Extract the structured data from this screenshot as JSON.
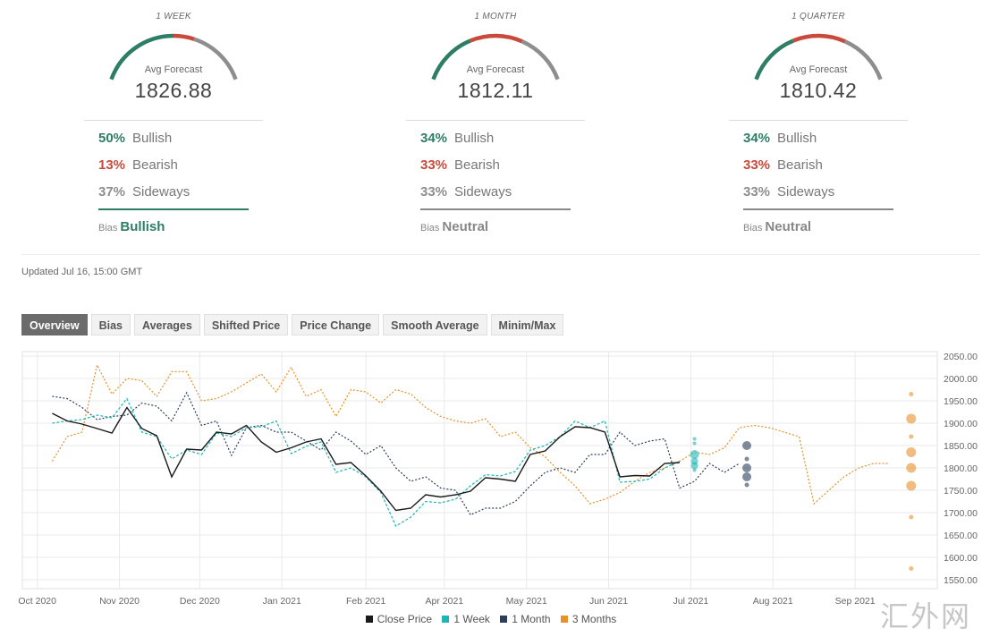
{
  "gauges": [
    {
      "period": "1 WEEK",
      "avg_label": "Avg Forecast",
      "avg_value": "1826.88",
      "bullish_pct": "50%",
      "bullish_label": "Bullish",
      "bearish_pct": "13%",
      "bearish_label": "Bearish",
      "sideways_pct": "37%",
      "sideways_label": "Sideways",
      "bias_label": "Bias",
      "bias_value": "Bullish",
      "bias_color": "#2e7d65",
      "arc": {
        "bullish": 0.5,
        "bearish": 0.13,
        "sideways": 0.37
      }
    },
    {
      "period": "1 MONTH",
      "avg_label": "Avg Forecast",
      "avg_value": "1812.11",
      "bullish_pct": "34%",
      "bullish_label": "Bullish",
      "bearish_pct": "33%",
      "bearish_label": "Bearish",
      "sideways_pct": "33%",
      "sideways_label": "Sideways",
      "bias_label": "Bias",
      "bias_value": "Neutral",
      "bias_color": "#888888",
      "arc": {
        "bullish": 0.34,
        "bearish": 0.33,
        "sideways": 0.33
      }
    },
    {
      "period": "1 QUARTER",
      "avg_label": "Avg Forecast",
      "avg_value": "1810.42",
      "bullish_pct": "34%",
      "bullish_label": "Bullish",
      "bearish_pct": "33%",
      "bearish_label": "Bearish",
      "sideways_pct": "33%",
      "sideways_label": "Sideways",
      "bias_label": "Bias",
      "bias_value": "Neutral",
      "bias_color": "#888888",
      "arc": {
        "bullish": 0.34,
        "bearish": 0.33,
        "sideways": 0.33
      }
    }
  ],
  "colors": {
    "bullish": "#2e7d65",
    "bearish": "#c9493b",
    "sideways": "#8e8e8e"
  },
  "updated": "Updated Jul 16, 15:00 GMT",
  "tabs": [
    "Overview",
    "Bias",
    "Averages",
    "Shifted Price",
    "Price Change",
    "Smooth Average",
    "Minim/Max"
  ],
  "legend": [
    {
      "label": "Close Price",
      "color": "#1a1a1a"
    },
    {
      "label": "1 Week",
      "color": "#1fb5b5"
    },
    {
      "label": "1 Month",
      "color": "#2c3e5c"
    },
    {
      "label": "3 Months",
      "color": "#e8902a"
    }
  ],
  "watermark": "汇外网",
  "chart_data": {
    "type": "line",
    "y_ticks": [
      1550,
      1600,
      1650,
      1700,
      1750,
      1800,
      1850,
      1900,
      1950,
      2000,
      2050
    ],
    "y_tick_labels": [
      "1550.00",
      "1600.00",
      "1650.00",
      "1700.00",
      "1750.00",
      "1800.00",
      "1850.00",
      "1900.00",
      "1950.00",
      "2000.00",
      "2050.00"
    ],
    "ylim": [
      1530,
      2060
    ],
    "x_ticks": [
      {
        "label": "Oct 2020",
        "week": 0
      },
      {
        "label": "Nov 2020",
        "week": 4.4
      },
      {
        "label": "Dec 2020",
        "week": 8.7
      },
      {
        "label": "Jan 2021",
        "week": 13.1
      },
      {
        "label": "Feb 2021",
        "week": 17.6
      },
      {
        "label": "Apr 2021",
        "week": 21.8
      },
      {
        "label": "May 2021",
        "week": 26.2
      },
      {
        "label": "Jun 2021",
        "week": 30.6
      },
      {
        "label": "Jul 2021",
        "week": 35.0
      },
      {
        "label": "Aug 2021",
        "week": 39.4
      },
      {
        "label": "Sep 2021",
        "week": 43.8
      }
    ],
    "xlim": [
      -0.8,
      48.2
    ],
    "series": [
      {
        "name": "Close Price",
        "color": "#1a1a1a",
        "style": "solid",
        "x": [
          0.8,
          1.6,
          2.4,
          3.2,
          4.0,
          4.8,
          5.6,
          6.4,
          7.2,
          8.0,
          8.8,
          9.6,
          10.4,
          11.2,
          12.0,
          12.8,
          13.6,
          14.4,
          15.2,
          16.0,
          16.8,
          17.6,
          18.4,
          19.2,
          20.0,
          20.8,
          21.6,
          22.4,
          23.2,
          24.0,
          24.8,
          25.6,
          26.4,
          27.2,
          28.0,
          28.8,
          29.6,
          30.4,
          31.2,
          32.0,
          32.8,
          33.6,
          34.4
        ],
        "y": [
          1922,
          1905,
          1898,
          1888,
          1878,
          1935,
          1888,
          1872,
          1780,
          1842,
          1840,
          1880,
          1876,
          1895,
          1858,
          1835,
          1845,
          1858,
          1865,
          1808,
          1812,
          1782,
          1748,
          1705,
          1710,
          1740,
          1735,
          1740,
          1748,
          1778,
          1775,
          1770,
          1830,
          1838,
          1870,
          1892,
          1890,
          1880,
          1780,
          1783,
          1782,
          1810,
          1812
        ]
      },
      {
        "name": "1 Week",
        "color": "#1fb5b5",
        "style": "dashed",
        "x": [
          0.8,
          1.6,
          2.4,
          3.2,
          4.0,
          4.8,
          5.6,
          6.4,
          7.2,
          8.0,
          8.8,
          9.6,
          10.4,
          11.2,
          12.0,
          12.8,
          13.6,
          14.4,
          15.2,
          16.0,
          16.8,
          17.6,
          18.4,
          19.2,
          20.0,
          20.8,
          21.6,
          22.4,
          23.2,
          24.0,
          24.8,
          25.6,
          26.4,
          27.2,
          28.0,
          28.8,
          29.6,
          30.4,
          31.2,
          32.0,
          32.8,
          33.6,
          34.4
        ],
        "y": [
          1900,
          1905,
          1908,
          1918,
          1912,
          1955,
          1880,
          1870,
          1820,
          1840,
          1830,
          1878,
          1870,
          1890,
          1892,
          1905,
          1832,
          1848,
          1858,
          1790,
          1800,
          1780,
          1745,
          1670,
          1690,
          1725,
          1722,
          1730,
          1760,
          1785,
          1782,
          1792,
          1840,
          1850,
          1870,
          1905,
          1890,
          1905,
          1768,
          1770,
          1775,
          1800,
          1815
        ]
      },
      {
        "name": "1 Month",
        "color": "#2c3e5c",
        "style": "dotted",
        "x": [
          0.8,
          1.6,
          2.4,
          3.2,
          4.0,
          4.8,
          5.6,
          6.4,
          7.2,
          8.0,
          8.8,
          9.6,
          10.4,
          11.2,
          12.0,
          12.8,
          13.6,
          14.4,
          15.2,
          16.0,
          16.8,
          17.6,
          18.4,
          19.2,
          20.0,
          20.8,
          21.6,
          22.4,
          23.2,
          24.0,
          24.8,
          25.6,
          26.4,
          27.2,
          28.0,
          28.8,
          29.6,
          30.4,
          31.2,
          32.0,
          32.8,
          33.6,
          34.4,
          35.2,
          36.0,
          36.8,
          37.6
        ],
        "y": [
          1960,
          1955,
          1935,
          1908,
          1915,
          1918,
          1945,
          1938,
          1905,
          1968,
          1895,
          1905,
          1828,
          1890,
          1895,
          1880,
          1880,
          1860,
          1840,
          1880,
          1860,
          1830,
          1850,
          1800,
          1770,
          1780,
          1755,
          1750,
          1695,
          1710,
          1710,
          1725,
          1760,
          1790,
          1800,
          1790,
          1830,
          1830,
          1880,
          1850,
          1860,
          1865,
          1755,
          1770,
          1810,
          1790,
          1810
        ]
      },
      {
        "name": "3 Months",
        "color": "#e8902a",
        "style": "dotted",
        "x": [
          0.8,
          1.6,
          2.4,
          3.2,
          4.0,
          4.8,
          5.6,
          6.4,
          7.2,
          8.0,
          8.8,
          9.6,
          10.4,
          11.2,
          12.0,
          12.8,
          13.6,
          14.4,
          15.2,
          16.0,
          16.8,
          17.6,
          18.4,
          19.2,
          20.0,
          20.8,
          21.6,
          22.4,
          23.2,
          24.0,
          24.8,
          25.6,
          26.4,
          27.2,
          28.0,
          28.8,
          29.6,
          30.4,
          31.2,
          32.0,
          32.8,
          33.6,
          34.4,
          35.2,
          36.0,
          36.8,
          37.6,
          38.4,
          39.2,
          40.0,
          40.8,
          41.6,
          42.4,
          43.2,
          44.0,
          44.8,
          45.6
        ],
        "y": [
          1815,
          1870,
          1880,
          2030,
          1965,
          2000,
          1995,
          1960,
          2015,
          2015,
          1950,
          1955,
          1970,
          1990,
          2010,
          1970,
          2025,
          1960,
          1975,
          1915,
          1975,
          1970,
          1945,
          1975,
          1965,
          1935,
          1915,
          1905,
          1900,
          1910,
          1870,
          1880,
          1845,
          1825,
          1790,
          1760,
          1720,
          1730,
          1745,
          1770,
          1790,
          1800,
          1815,
          1835,
          1830,
          1845,
          1890,
          1895,
          1890,
          1880,
          1870,
          1720,
          1750,
          1780,
          1800,
          1810,
          1810
        ]
      }
    ],
    "forecast_dots": [
      {
        "series": "1 Week",
        "color": "#1fb5b5",
        "x": 35.2,
        "points": [
          {
            "y": 1865,
            "r": 2
          },
          {
            "y": 1855,
            "r": 2
          },
          {
            "y": 1830,
            "r": 5
          },
          {
            "y": 1815,
            "r": 4
          },
          {
            "y": 1805,
            "r": 4
          },
          {
            "y": 1795,
            "r": 2
          }
        ]
      },
      {
        "series": "1 Month",
        "color": "#2c3e5c",
        "x": 38.0,
        "points": [
          {
            "y": 1850,
            "r": 5
          },
          {
            "y": 1820,
            "r": 2.5
          },
          {
            "y": 1800,
            "r": 5
          },
          {
            "y": 1780,
            "r": 5
          },
          {
            "y": 1762,
            "r": 2.5
          }
        ]
      },
      {
        "series": "3 Months",
        "color": "#e8902a",
        "x": 46.8,
        "points": [
          {
            "y": 1965,
            "r": 2.5
          },
          {
            "y": 1910,
            "r": 5.5
          },
          {
            "y": 1870,
            "r": 2.5
          },
          {
            "y": 1835,
            "r": 5.5
          },
          {
            "y": 1800,
            "r": 5.5
          },
          {
            "y": 1760,
            "r": 5.5
          },
          {
            "y": 1690,
            "r": 2.5
          },
          {
            "y": 1575,
            "r": 2.5
          }
        ]
      }
    ],
    "grid": true,
    "legend_position": "bottom-center"
  }
}
